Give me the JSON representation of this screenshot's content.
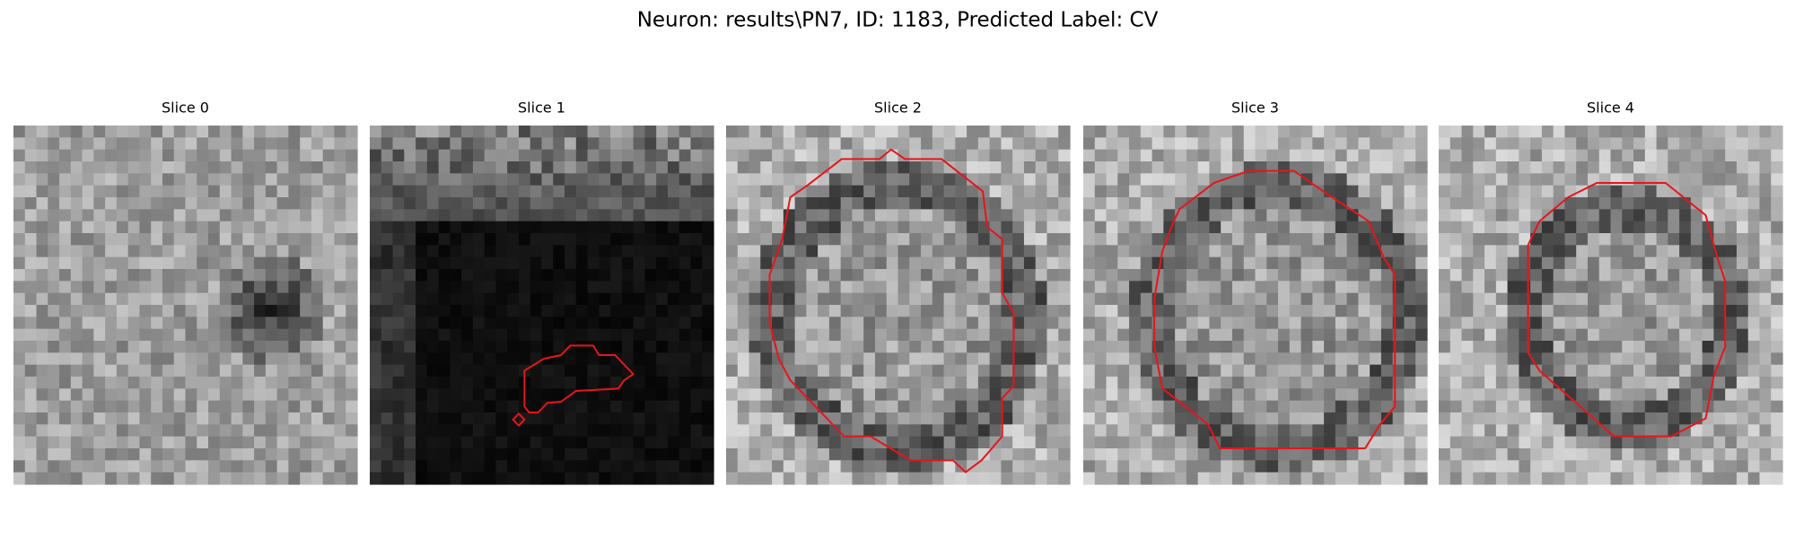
{
  "figure": {
    "title": "Neuron: results\\PN7, ID: 1183, Predicted Label: CV",
    "panels": [
      {
        "title": "Slice 0"
      },
      {
        "title": "Slice 1"
      },
      {
        "title": "Slice 2"
      },
      {
        "title": "Slice 3"
      },
      {
        "title": "Slice 4"
      }
    ]
  }
}
